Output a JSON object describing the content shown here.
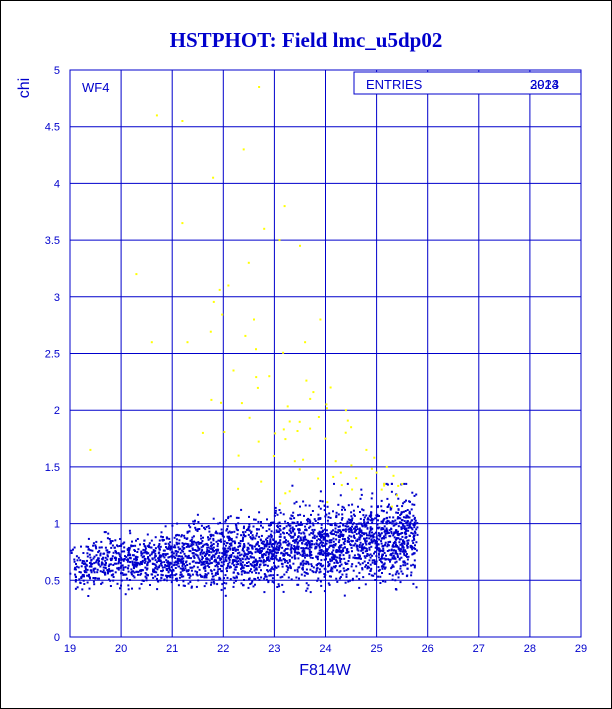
{
  "chart_data": {
    "type": "scatter",
    "title": "HSTPHOT: Field lmc_u5dp02",
    "xlabel": "F814W",
    "ylabel": "chi",
    "xlim": [
      19,
      29
    ],
    "ylim": [
      0,
      5
    ],
    "x_ticks": [
      "19",
      "20",
      "21",
      "22",
      "23",
      "24",
      "25",
      "26",
      "27",
      "28",
      "29"
    ],
    "y_ticks": [
      "0",
      "0.5",
      "1",
      "1.5",
      "2",
      "2.5",
      "3",
      "3.5",
      "4",
      "4.5",
      "5"
    ],
    "grid": true,
    "panel_label": "WF4",
    "stats_box": {
      "label": "ENTRIES",
      "values": [
        "2924",
        "3013"
      ]
    },
    "series": [
      {
        "color": "#0000cc",
        "point_count": 2924,
        "x_range": [
          19.0,
          25.8
        ],
        "y_range": [
          0.3,
          1.35
        ],
        "points": [
          [
            19.1,
            0.55
          ],
          [
            19.2,
            0.48
          ],
          [
            19.3,
            0.62
          ],
          [
            19.4,
            0.7
          ],
          [
            19.5,
            0.52
          ],
          [
            19.6,
            0.58
          ],
          [
            19.7,
            0.65
          ],
          [
            19.8,
            0.45
          ],
          [
            19.9,
            0.75
          ],
          [
            19.95,
            0.6
          ],
          [
            20.0,
            0.68
          ],
          [
            20.1,
            0.55
          ],
          [
            20.2,
            0.8
          ],
          [
            20.3,
            0.62
          ],
          [
            20.4,
            0.72
          ],
          [
            20.5,
            0.5
          ],
          [
            20.6,
            0.85
          ],
          [
            20.7,
            0.66
          ],
          [
            20.8,
            0.58
          ],
          [
            20.9,
            0.78
          ],
          [
            21.0,
            0.7
          ],
          [
            21.1,
            0.9
          ],
          [
            21.2,
            0.6
          ],
          [
            21.3,
            0.82
          ],
          [
            21.4,
            0.74
          ],
          [
            21.5,
            0.95
          ],
          [
            21.6,
            0.64
          ],
          [
            21.7,
            0.88
          ],
          [
            21.8,
            0.72
          ],
          [
            21.9,
            1.0
          ],
          [
            22.0,
            0.78
          ],
          [
            22.1,
            0.92
          ],
          [
            22.2,
            0.68
          ],
          [
            22.3,
            1.05
          ],
          [
            22.4,
            0.8
          ],
          [
            22.5,
            0.9
          ],
          [
            22.6,
            0.7
          ],
          [
            22.7,
            1.1
          ],
          [
            22.8,
            0.84
          ],
          [
            22.9,
            0.95
          ],
          [
            23.0,
            0.76
          ],
          [
            23.1,
            1.12
          ],
          [
            23.2,
            0.88
          ],
          [
            23.3,
            0.98
          ],
          [
            23.4,
            0.72
          ],
          [
            23.5,
            1.15
          ],
          [
            23.6,
            0.86
          ],
          [
            23.7,
            1.02
          ],
          [
            23.8,
            0.78
          ],
          [
            23.9,
            1.2
          ],
          [
            24.0,
            0.9
          ],
          [
            24.1,
            1.05
          ],
          [
            24.2,
            0.82
          ],
          [
            24.3,
            1.25
          ],
          [
            24.4,
            0.95
          ],
          [
            24.5,
            1.1
          ],
          [
            24.6,
            0.85
          ],
          [
            24.7,
            1.3
          ],
          [
            24.8,
            0.98
          ],
          [
            24.9,
            1.15
          ],
          [
            25.0,
            0.88
          ],
          [
            25.1,
            1.2
          ],
          [
            25.2,
            1.0
          ],
          [
            25.3,
            1.28
          ],
          [
            25.4,
            0.92
          ],
          [
            25.5,
            1.1
          ],
          [
            25.6,
            1.02
          ],
          [
            25.7,
            0.95
          ],
          [
            25.75,
            1.05
          ],
          [
            25.8,
            0.9
          ]
        ]
      },
      {
        "color": "#ffff00",
        "point_count": 89,
        "x_range": [
          19.3,
          25.6
        ],
        "y_range": [
          1.1,
          4.9
        ],
        "points": [
          [
            19.4,
            1.65
          ],
          [
            20.3,
            3.2
          ],
          [
            20.6,
            2.6
          ],
          [
            20.7,
            4.6
          ],
          [
            21.2,
            4.55
          ],
          [
            21.2,
            3.65
          ],
          [
            21.3,
            2.6
          ],
          [
            21.8,
            4.05
          ],
          [
            22.1,
            3.1
          ],
          [
            22.2,
            2.35
          ],
          [
            22.4,
            4.3
          ],
          [
            22.5,
            3.3
          ],
          [
            22.6,
            2.8
          ],
          [
            22.7,
            4.85
          ],
          [
            22.8,
            3.6
          ],
          [
            22.9,
            2.3
          ],
          [
            23.1,
            3.5
          ],
          [
            23.2,
            3.8
          ],
          [
            23.3,
            1.9
          ],
          [
            23.5,
            3.45
          ],
          [
            23.6,
            2.6
          ],
          [
            23.7,
            2.1
          ],
          [
            23.9,
            2.8
          ],
          [
            24.0,
            1.75
          ],
          [
            24.1,
            2.2
          ],
          [
            24.2,
            1.55
          ],
          [
            24.4,
            2.0
          ],
          [
            24.5,
            1.85
          ],
          [
            24.6,
            1.4
          ],
          [
            24.8,
            1.65
          ],
          [
            25.0,
            1.45
          ],
          [
            25.1,
            1.3
          ],
          [
            25.2,
            1.5
          ],
          [
            25.4,
            1.25
          ],
          [
            25.5,
            1.35
          ],
          [
            21.6,
            1.8
          ],
          [
            22.3,
            1.6
          ],
          [
            23.4,
            1.55
          ],
          [
            24.3,
            1.45
          ],
          [
            25.3,
            1.15
          ]
        ]
      }
    ]
  }
}
